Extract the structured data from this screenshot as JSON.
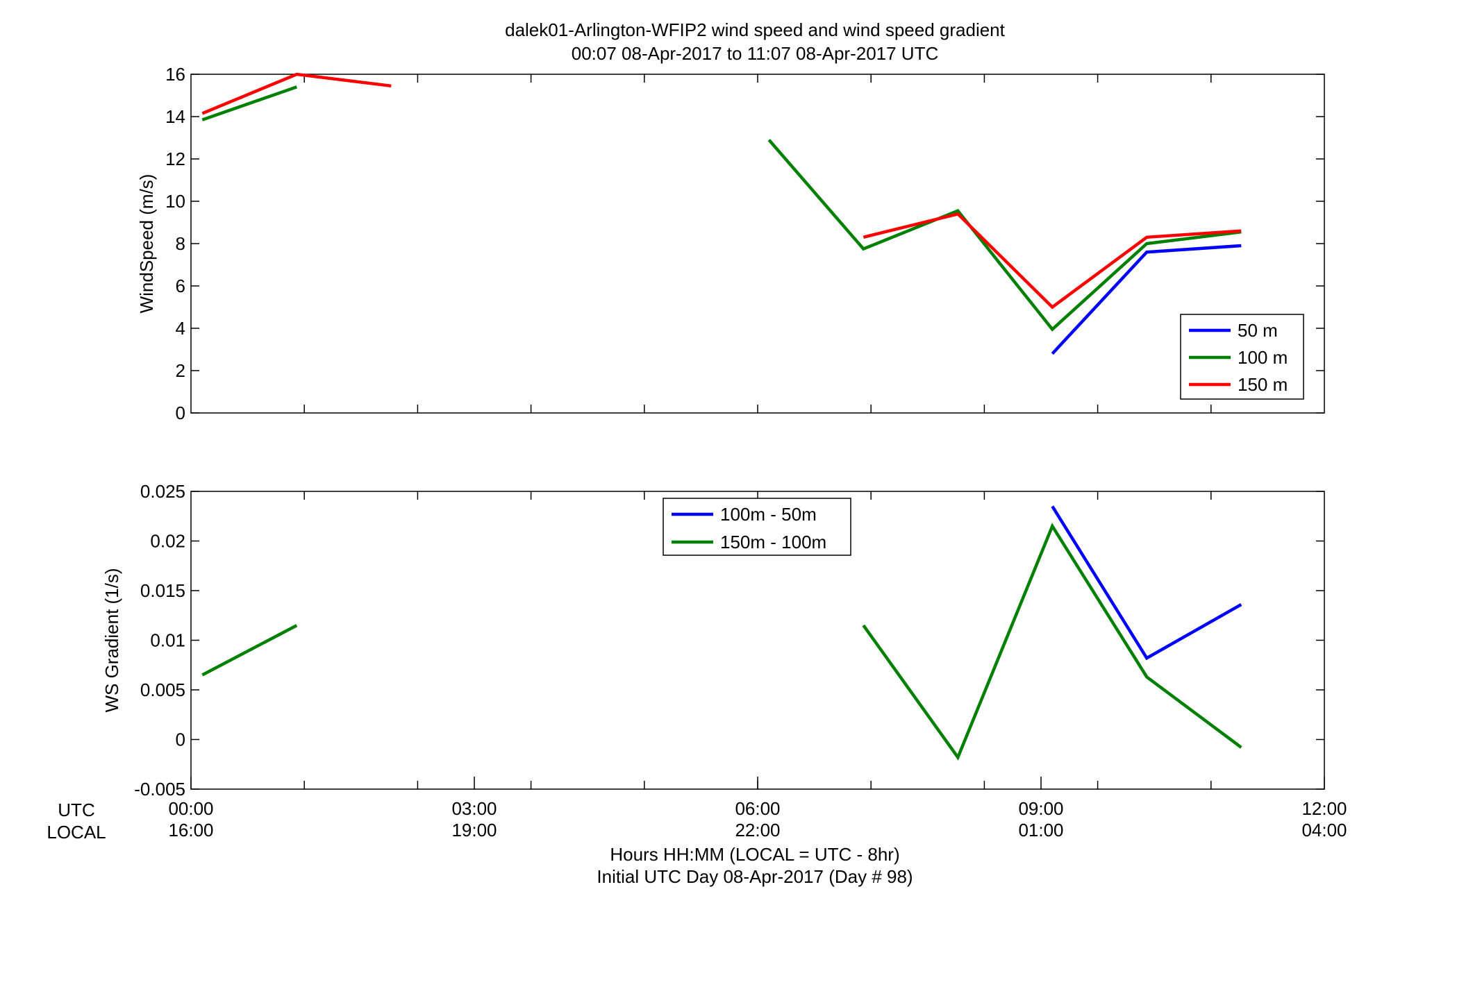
{
  "title": {
    "line1": "dalek01-Arlington-WFIP2  wind speed and wind speed gradient",
    "line2": "00:07 08-Apr-2017 to 11:07 08-Apr-2017  UTC"
  },
  "xaxis": {
    "utc_row_label": "UTC",
    "local_row_label": "LOCAL",
    "xlabel_line1": "Hours HH:MM  (LOCAL = UTC - 8hr)",
    "xlabel_line2": "Initial UTC Day 08-Apr-2017 (Day # 98)",
    "ticks_hours": [
      0,
      3,
      6,
      9,
      12
    ],
    "ticks_utc": [
      "00:00",
      "03:00",
      "06:00",
      "09:00",
      "12:00"
    ],
    "ticks_local": [
      "16:00",
      "19:00",
      "22:00",
      "01:00",
      "04:00"
    ],
    "minor_ticks_hours": [
      1.2,
      2.4,
      3.6,
      4.8,
      6.0,
      7.2,
      8.4,
      9.6,
      10.8
    ]
  },
  "colors": {
    "blue": "#0000ff",
    "green": "#008000",
    "red": "#ff0000"
  },
  "chart_data": [
    {
      "type": "line",
      "title": "",
      "xlabel": "",
      "ylabel": "WindSpeed (m/s)",
      "xlim": [
        0,
        12
      ],
      "ylim": [
        0,
        16
      ],
      "yticks": [
        0,
        2,
        4,
        6,
        8,
        10,
        12,
        14,
        16
      ],
      "ytick_labels": [
        "0",
        "2",
        "4",
        "6",
        "8",
        "10",
        "12",
        "14",
        "16"
      ],
      "grid": false,
      "legend_position": "lower-right",
      "series": [
        {
          "name": "50 m",
          "color": "#0000ff",
          "x": [
            9.12,
            10.12,
            11.12
          ],
          "y": [
            2.8,
            7.6,
            7.9
          ]
        },
        {
          "name": "100 m",
          "color": "#008000",
          "x": [
            0.12,
            1.12,
            null,
            6.12,
            7.12,
            8.12,
            9.12,
            10.12,
            11.12
          ],
          "y": [
            13.85,
            15.4,
            null,
            12.9,
            7.75,
            9.55,
            3.95,
            8.0,
            8.55
          ]
        },
        {
          "name": "150 m",
          "color": "#ff0000",
          "x": [
            0.12,
            1.12,
            2.12,
            null,
            7.12,
            8.12,
            9.12,
            10.12,
            11.12
          ],
          "y": [
            14.15,
            16.0,
            15.45,
            null,
            8.3,
            9.4,
            5.0,
            8.3,
            8.6
          ]
        }
      ]
    },
    {
      "type": "line",
      "title": "",
      "xlabel": "",
      "ylabel": "WS Gradient (1/s)",
      "xlim": [
        0,
        12
      ],
      "ylim": [
        -0.005,
        0.025
      ],
      "yticks": [
        -0.005,
        0,
        0.005,
        0.01,
        0.015,
        0.02,
        0.025
      ],
      "ytick_labels": [
        "-0.005",
        "0",
        "0.005",
        "0.01",
        "0.015",
        "0.02",
        "0.025"
      ],
      "grid": false,
      "legend_position": "top-center",
      "series": [
        {
          "name": "100m - 50m",
          "color": "#0000ff",
          "x": [
            9.12,
            10.12,
            11.12
          ],
          "y": [
            0.0235,
            0.0082,
            0.0136
          ]
        },
        {
          "name": "150m - 100m",
          "color": "#008000",
          "x": [
            0.12,
            1.12,
            null,
            7.12,
            8.12,
            9.12,
            10.12,
            11.12
          ],
          "y": [
            0.0065,
            0.0115,
            null,
            0.0115,
            -0.0018,
            0.0215,
            0.0063,
            -0.0008
          ]
        }
      ]
    }
  ]
}
